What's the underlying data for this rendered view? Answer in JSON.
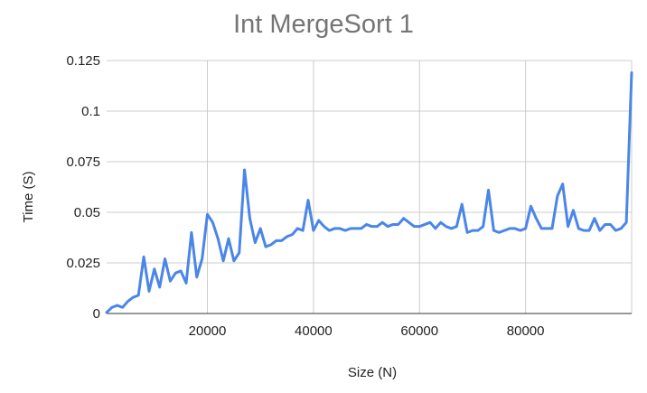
{
  "chart_data": {
    "type": "line",
    "title": "Int MergeSort 1",
    "xlabel": "Size (N)",
    "ylabel": "Time (S)",
    "xlim": [
      1000,
      100000
    ],
    "ylim": [
      0,
      0.125
    ],
    "x_ticks": [
      20000,
      40000,
      60000,
      80000
    ],
    "x_tick_labels": [
      "20000",
      "40000",
      "60000",
      "80000"
    ],
    "y_ticks": [
      0,
      0.025,
      0.05,
      0.075,
      0.1,
      0.125
    ],
    "y_tick_labels": [
      "0",
      "0.025",
      "0.05",
      "0.075",
      "0.1",
      "0.125"
    ],
    "grid": true,
    "legend": "none",
    "colors": {
      "series": "#4a86e8"
    },
    "series": [
      {
        "values": [
          [
            1000,
            0.0005
          ],
          [
            2000,
            0.003
          ],
          [
            3000,
            0.004
          ],
          [
            4000,
            0.003
          ],
          [
            5000,
            0.006
          ],
          [
            6000,
            0.008
          ],
          [
            7000,
            0.009
          ],
          [
            8000,
            0.028
          ],
          [
            9000,
            0.011
          ],
          [
            10000,
            0.022
          ],
          [
            11000,
            0.013
          ],
          [
            12000,
            0.027
          ],
          [
            13000,
            0.016
          ],
          [
            14000,
            0.02
          ],
          [
            15000,
            0.021
          ],
          [
            16000,
            0.015
          ],
          [
            17000,
            0.04
          ],
          [
            18000,
            0.018
          ],
          [
            19000,
            0.027
          ],
          [
            20000,
            0.049
          ],
          [
            21000,
            0.045
          ],
          [
            22000,
            0.037
          ],
          [
            23000,
            0.026
          ],
          [
            24000,
            0.037
          ],
          [
            25000,
            0.026
          ],
          [
            26000,
            0.03
          ],
          [
            27000,
            0.071
          ],
          [
            28000,
            0.047
          ],
          [
            29000,
            0.035
          ],
          [
            30000,
            0.042
          ],
          [
            31000,
            0.033
          ],
          [
            32000,
            0.034
          ],
          [
            33000,
            0.036
          ],
          [
            34000,
            0.036
          ],
          [
            35000,
            0.038
          ],
          [
            36000,
            0.039
          ],
          [
            37000,
            0.042
          ],
          [
            38000,
            0.041
          ],
          [
            39000,
            0.056
          ],
          [
            40000,
            0.041
          ],
          [
            41000,
            0.046
          ],
          [
            42000,
            0.043
          ],
          [
            43000,
            0.041
          ],
          [
            44000,
            0.042
          ],
          [
            45000,
            0.042
          ],
          [
            46000,
            0.041
          ],
          [
            47000,
            0.042
          ],
          [
            48000,
            0.042
          ],
          [
            49000,
            0.042
          ],
          [
            50000,
            0.044
          ],
          [
            51000,
            0.043
          ],
          [
            52000,
            0.043
          ],
          [
            53000,
            0.045
          ],
          [
            54000,
            0.043
          ],
          [
            55000,
            0.044
          ],
          [
            56000,
            0.044
          ],
          [
            57000,
            0.047
          ],
          [
            58000,
            0.045
          ],
          [
            59000,
            0.043
          ],
          [
            60000,
            0.043
          ],
          [
            61000,
            0.044
          ],
          [
            62000,
            0.045
          ],
          [
            63000,
            0.042
          ],
          [
            64000,
            0.045
          ],
          [
            65000,
            0.043
          ],
          [
            66000,
            0.042
          ],
          [
            67000,
            0.043
          ],
          [
            68000,
            0.054
          ],
          [
            69000,
            0.04
          ],
          [
            70000,
            0.041
          ],
          [
            71000,
            0.041
          ],
          [
            72000,
            0.043
          ],
          [
            73000,
            0.061
          ],
          [
            74000,
            0.041
          ],
          [
            75000,
            0.04
          ],
          [
            76000,
            0.041
          ],
          [
            77000,
            0.042
          ],
          [
            78000,
            0.042
          ],
          [
            79000,
            0.041
          ],
          [
            80000,
            0.042
          ],
          [
            81000,
            0.053
          ],
          [
            82000,
            0.047
          ],
          [
            83000,
            0.042
          ],
          [
            84000,
            0.042
          ],
          [
            85000,
            0.042
          ],
          [
            86000,
            0.058
          ],
          [
            87000,
            0.064
          ],
          [
            88000,
            0.043
          ],
          [
            89000,
            0.051
          ],
          [
            90000,
            0.042
          ],
          [
            91000,
            0.041
          ],
          [
            92000,
            0.041
          ],
          [
            93000,
            0.047
          ],
          [
            94000,
            0.041
          ],
          [
            95000,
            0.044
          ],
          [
            96000,
            0.044
          ],
          [
            97000,
            0.041
          ],
          [
            98000,
            0.042
          ],
          [
            99000,
            0.045
          ],
          [
            100000,
            0.119
          ]
        ]
      }
    ]
  }
}
